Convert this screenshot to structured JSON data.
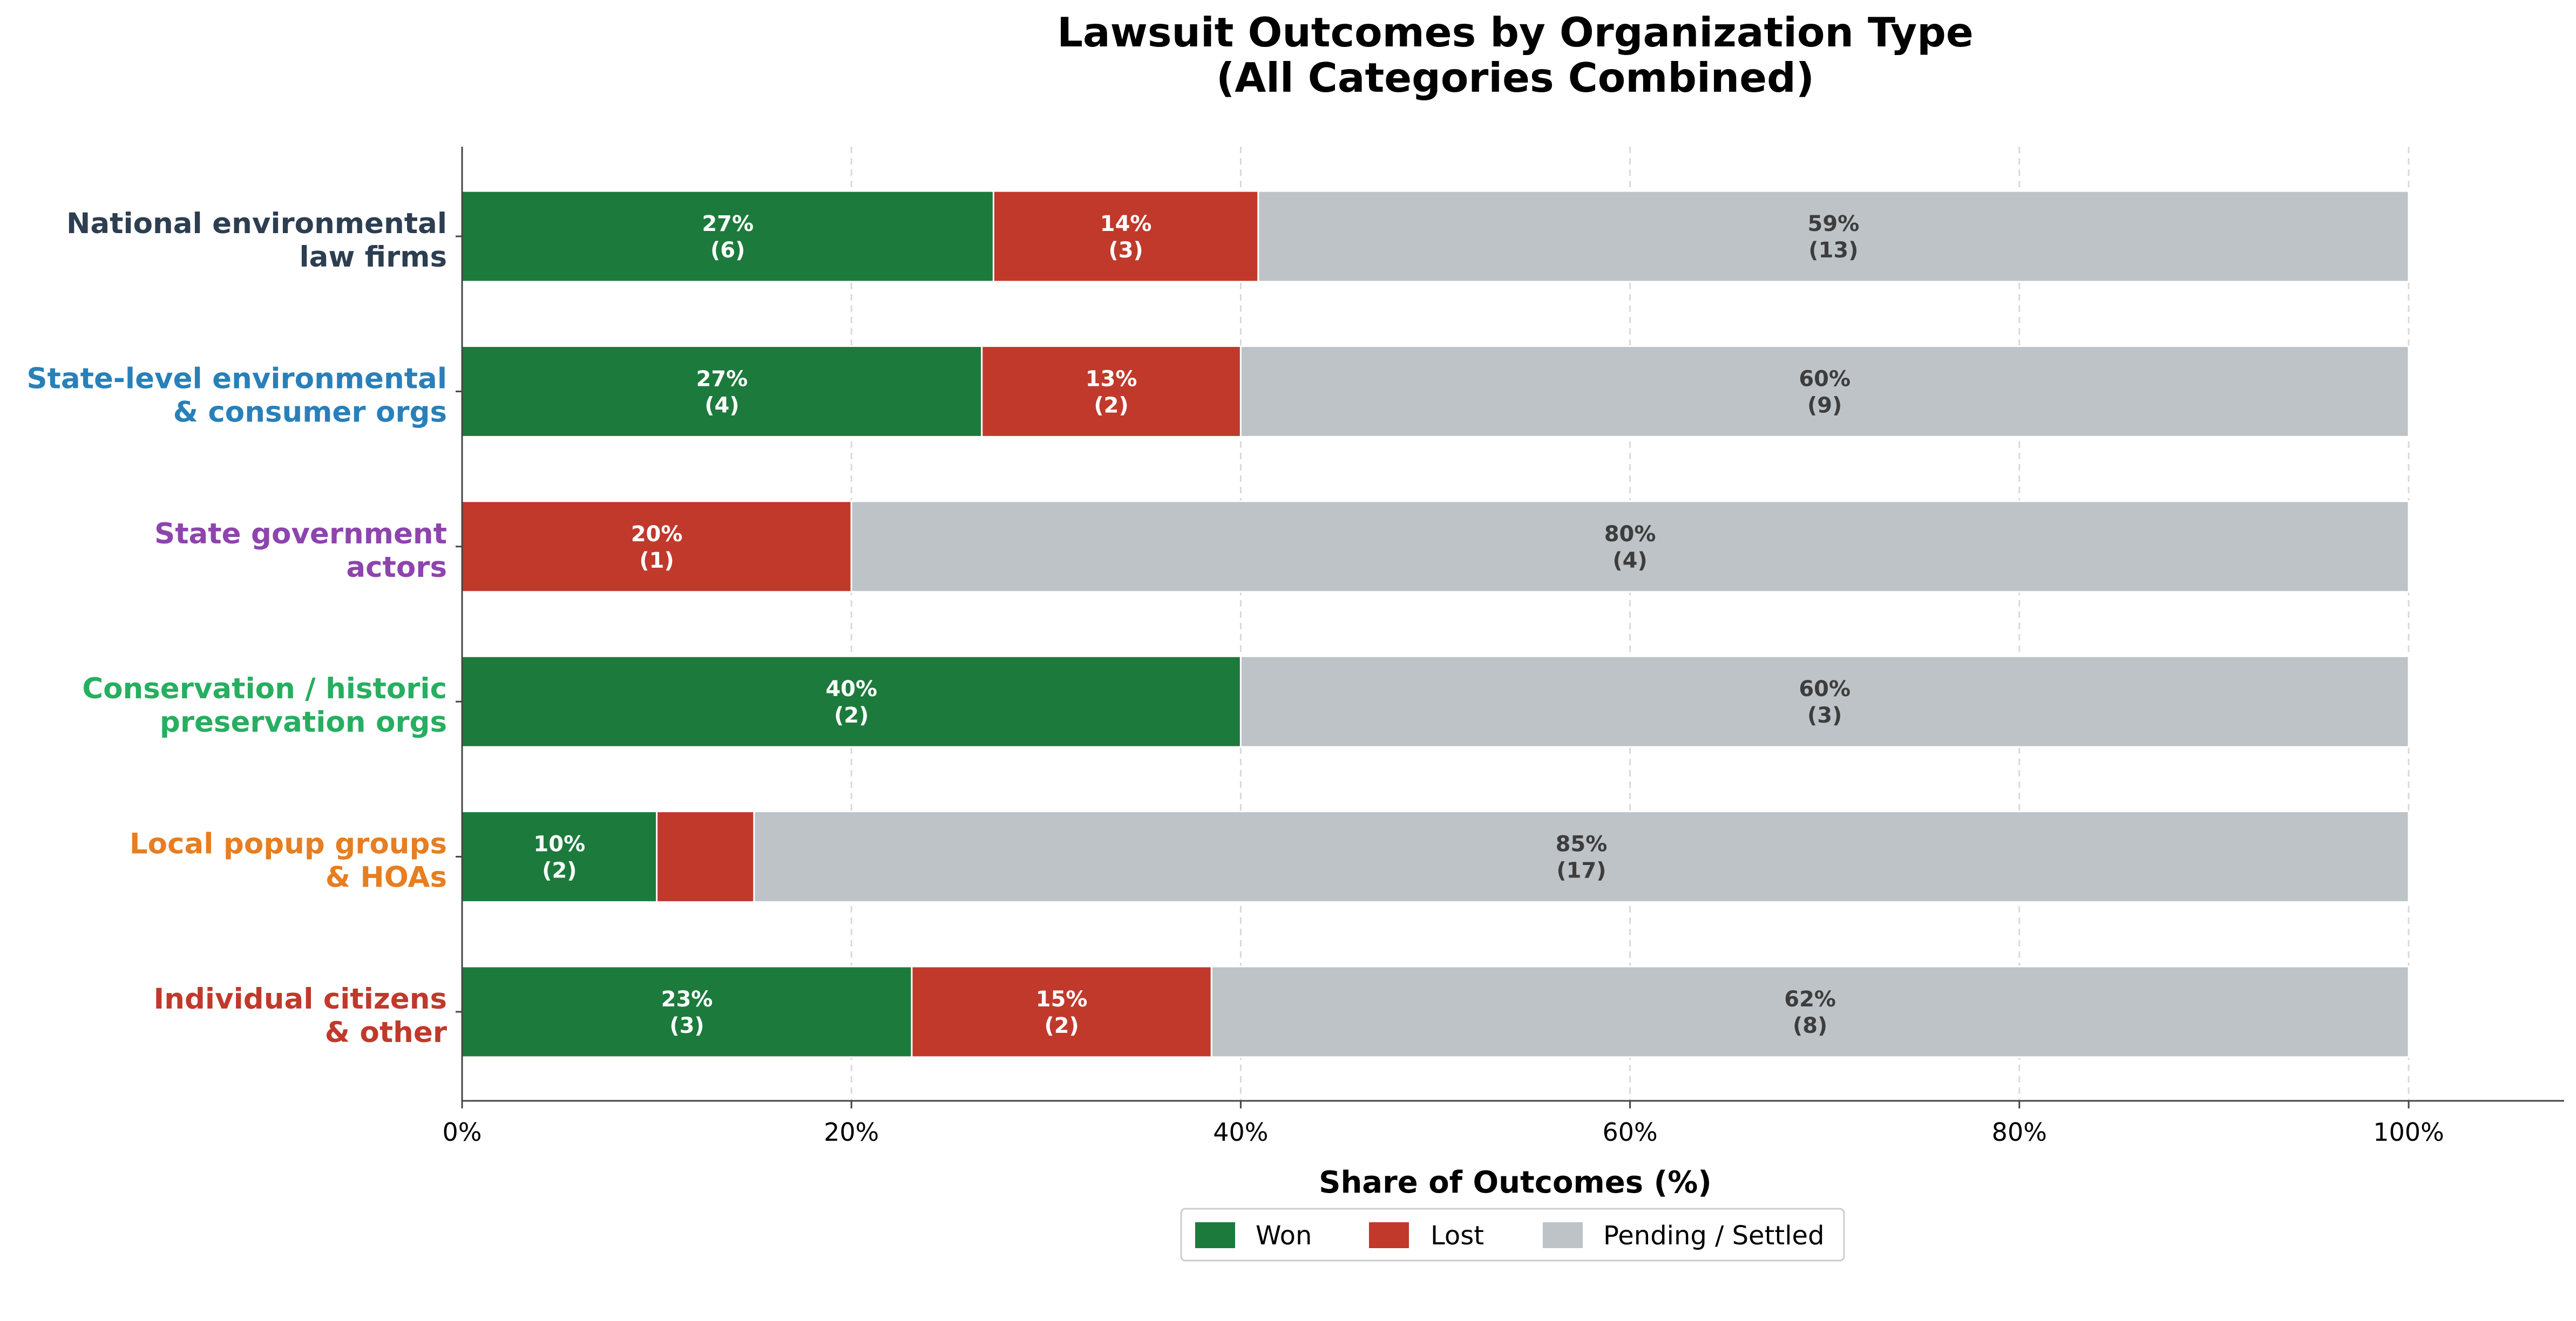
{
  "chart_data": {
    "type": "bar",
    "orientation": "horizontal",
    "stacked": true,
    "title": "Lawsuit Outcomes by Organization Type",
    "subtitle": "(All Categories Combined)",
    "xlabel": "Share of Outcomes (%)",
    "ylabel": "",
    "xlim": [
      0,
      108
    ],
    "xticks": [
      0,
      20,
      40,
      60,
      80,
      100
    ],
    "xtick_labels": [
      "0%",
      "20%",
      "40%",
      "60%",
      "80%",
      "100%"
    ],
    "grid": "x-dashed",
    "legend_position": "bottom-center",
    "categories": [
      {
        "lines": [
          "National environmental",
          "law firms"
        ],
        "color": "#2c3e50"
      },
      {
        "lines": [
          "State-level environmental",
          "& consumer orgs"
        ],
        "color": "#2980b9"
      },
      {
        "lines": [
          "State government",
          "actors"
        ],
        "color": "#8e44ad"
      },
      {
        "lines": [
          "Conservation / historic",
          "preservation orgs"
        ],
        "color": "#27ae60"
      },
      {
        "lines": [
          "Local popup groups",
          "& HOAs"
        ],
        "color": "#e67e22"
      },
      {
        "lines": [
          "Individual citizens",
          "& other"
        ],
        "color": "#c0392b"
      }
    ],
    "series": [
      {
        "name": "Won",
        "color": "#1c7a3c",
        "label_color": "#ffffff",
        "values": [
          27.3,
          26.7,
          0,
          40,
          10,
          23.1
        ],
        "counts": [
          6,
          4,
          0,
          2,
          2,
          3
        ],
        "labels": [
          [
            "27%",
            "(6)"
          ],
          [
            "27%",
            "(4)"
          ],
          null,
          [
            "40%",
            "(2)"
          ],
          [
            "10%",
            "(2)"
          ],
          [
            "23%",
            "(3)"
          ]
        ]
      },
      {
        "name": "Lost",
        "color": "#c0392b",
        "label_color": "#ffffff",
        "values": [
          13.6,
          13.3,
          20,
          0,
          5,
          15.4
        ],
        "counts": [
          3,
          2,
          1,
          0,
          1,
          2
        ],
        "labels": [
          [
            "14%",
            "(3)"
          ],
          [
            "13%",
            "(2)"
          ],
          [
            "20%",
            "(1)"
          ],
          null,
          null,
          [
            "15%",
            "(2)"
          ]
        ]
      },
      {
        "name": "Pending / Settled",
        "color": "#bdc3c7",
        "label_color": "#3d3d3d",
        "values": [
          59.1,
          60,
          80,
          60,
          85,
          61.5
        ],
        "counts": [
          13,
          9,
          4,
          3,
          17,
          8
        ],
        "labels": [
          [
            "59%",
            "(13)"
          ],
          [
            "60%",
            "(9)"
          ],
          [
            "80%",
            "(4)"
          ],
          [
            "60%",
            "(3)"
          ],
          [
            "85%",
            "(17)"
          ],
          [
            "62%",
            "(8)"
          ]
        ]
      }
    ]
  }
}
